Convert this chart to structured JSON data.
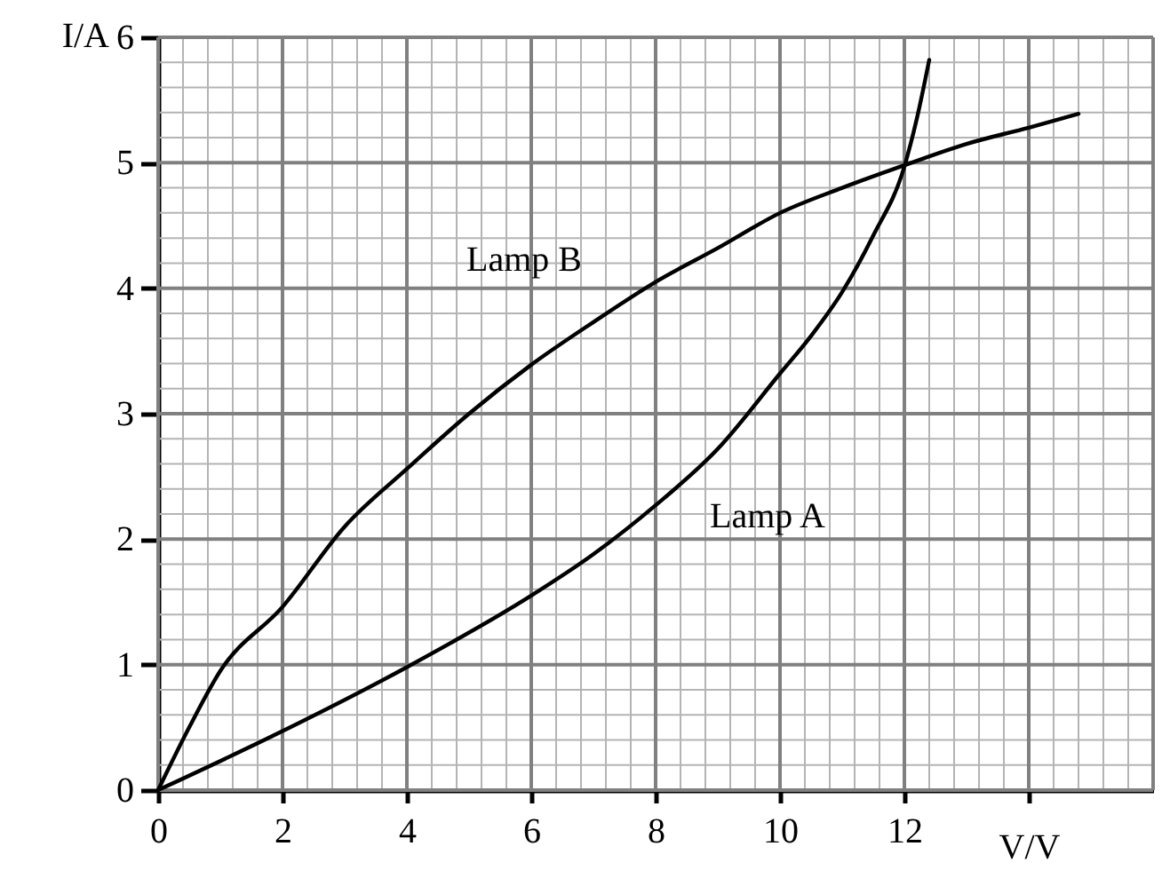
{
  "chart_data": {
    "type": "line",
    "xlabel": "V/V",
    "ylabel": "I/A",
    "xlim": [
      0,
      16
    ],
    "ylim": [
      0,
      6
    ],
    "xticks": [
      0,
      2,
      4,
      6,
      8,
      10,
      12,
      {
        "value": 14,
        "label": null
      }
    ],
    "yticks": [
      0,
      1,
      2,
      3,
      4,
      5,
      6
    ],
    "grid": true,
    "marker": "none",
    "line_style": "solid",
    "series": [
      {
        "name": "Lamp A",
        "color": "#000000",
        "x": [
          0,
          2,
          4,
          6,
          7,
          8,
          9,
          10,
          10.5,
          11,
          11.5,
          12,
          12.2,
          12.4
        ],
        "values": [
          0,
          0.47,
          0.98,
          1.55,
          1.88,
          2.27,
          2.72,
          3.32,
          3.62,
          3.97,
          4.42,
          4.97,
          5.35,
          5.82
        ]
      },
      {
        "name": "Lamp B",
        "color": "#000000",
        "x": [
          0,
          0.5,
          1,
          2,
          3,
          4,
          5,
          6,
          7,
          8,
          9,
          10,
          11,
          12,
          13,
          14,
          14.8
        ],
        "values": [
          0,
          0.5,
          0.95,
          1.46,
          2.1,
          2.56,
          3.0,
          3.39,
          3.73,
          4.05,
          4.32,
          4.6,
          4.8,
          4.98,
          5.15,
          5.28,
          5.39
        ]
      }
    ]
  }
}
